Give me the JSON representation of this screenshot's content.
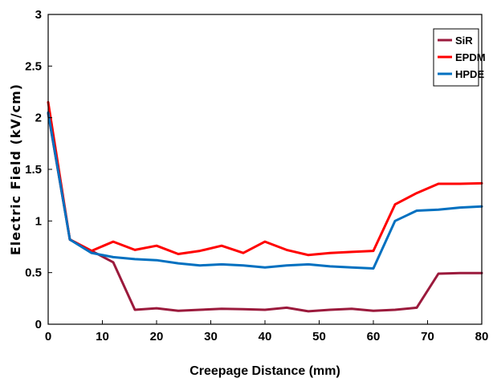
{
  "chart_data": {
    "type": "line",
    "xlabel": "Creepage Distance (mm)",
    "ylabel": "Electric Field (kV/cm)",
    "xlim": [
      0,
      80
    ],
    "ylim": [
      0,
      3
    ],
    "xticks": [
      0,
      10,
      20,
      30,
      40,
      50,
      60,
      70,
      80
    ],
    "yticks": [
      0,
      0.5,
      1,
      1.5,
      2,
      2.5,
      3
    ],
    "xtick_labels": [
      "0",
      "10",
      "20",
      "30",
      "40",
      "50",
      "60",
      "70",
      "80"
    ],
    "ytick_labels": [
      "0",
      "0.5",
      "1",
      "1.5",
      "2",
      "2.5",
      "3"
    ],
    "grid": false,
    "legend_position": "top-right",
    "x": [
      0,
      4,
      8,
      12,
      16,
      20,
      24,
      28,
      32,
      36,
      40,
      44,
      48,
      52,
      56,
      60,
      64,
      68,
      72,
      76,
      80
    ],
    "series": [
      {
        "name": "SiR",
        "color": "#9b1a3c",
        "values": [
          2.04,
          0.82,
          0.71,
          0.6,
          0.14,
          0.155,
          0.13,
          0.14,
          0.15,
          0.145,
          0.14,
          0.16,
          0.125,
          0.14,
          0.15,
          0.13,
          0.14,
          0.16,
          0.49,
          0.495,
          0.495
        ]
      },
      {
        "name": "EPDM",
        "color": "#ff0000",
        "values": [
          2.15,
          0.82,
          0.71,
          0.8,
          0.72,
          0.76,
          0.68,
          0.71,
          0.76,
          0.69,
          0.8,
          0.72,
          0.67,
          0.69,
          0.7,
          0.71,
          1.16,
          1.27,
          1.36,
          1.36,
          1.365
        ]
      },
      {
        "name": "HPDE",
        "color": "#0070c0",
        "values": [
          2.05,
          0.82,
          0.69,
          0.65,
          0.63,
          0.62,
          0.59,
          0.57,
          0.58,
          0.57,
          0.55,
          0.57,
          0.58,
          0.56,
          0.55,
          0.54,
          1.0,
          1.1,
          1.11,
          1.13,
          1.14
        ]
      }
    ]
  }
}
